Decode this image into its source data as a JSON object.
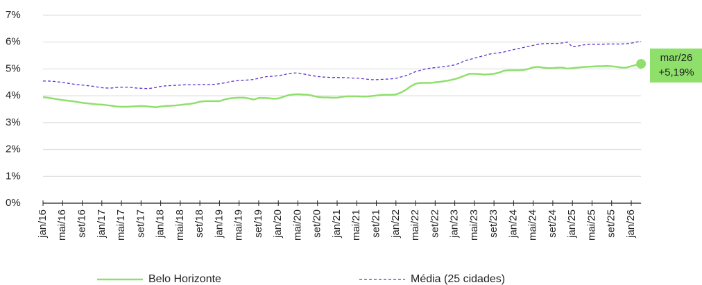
{
  "chart_data": {
    "type": "line",
    "categories": [
      "jan/16",
      null,
      null,
      null,
      "mai/16",
      null,
      null,
      null,
      "set/16",
      null,
      null,
      null,
      "jan/17",
      null,
      null,
      null,
      "mai/17",
      null,
      null,
      null,
      "set/17",
      null,
      null,
      null,
      "jan/18",
      null,
      null,
      null,
      "mai/18",
      null,
      null,
      null,
      "set/18",
      null,
      null,
      null,
      "jan/19",
      null,
      null,
      null,
      "mai/19",
      null,
      null,
      null,
      "set/19",
      null,
      null,
      null,
      "jan/20",
      null,
      null,
      null,
      "mai/20",
      null,
      null,
      null,
      "set/20",
      null,
      null,
      null,
      "jan/21",
      null,
      null,
      null,
      "mai/21",
      null,
      null,
      null,
      "set/21",
      null,
      null,
      null,
      "jan/22",
      null,
      null,
      null,
      "mai/22",
      null,
      null,
      null,
      "set/22",
      null,
      null,
      null,
      "jan/23",
      null,
      null,
      null,
      "mai/23",
      null,
      null,
      null,
      "set/23",
      null,
      null,
      null,
      "jan/24",
      null,
      null,
      null,
      "mai/24",
      null,
      null,
      null,
      "set/24",
      null,
      null,
      null,
      "jan/25",
      null,
      null,
      null,
      "mai/25",
      null,
      null,
      null,
      "set/25",
      null,
      null,
      null,
      "jan/26",
      null,
      null
    ],
    "series": [
      {
        "name": "Belo Horizonte",
        "color": "#8fe06b",
        "style": "solid",
        "values": [
          3.95,
          3.93,
          3.9,
          3.87,
          3.84,
          3.82,
          3.8,
          3.77,
          3.74,
          3.72,
          3.7,
          3.68,
          3.67,
          3.65,
          3.63,
          3.6,
          3.59,
          3.59,
          3.6,
          3.61,
          3.62,
          3.61,
          3.59,
          3.57,
          3.6,
          3.62,
          3.63,
          3.64,
          3.66,
          3.68,
          3.7,
          3.73,
          3.78,
          3.8,
          3.8,
          3.8,
          3.8,
          3.86,
          3.9,
          3.92,
          3.93,
          3.93,
          3.9,
          3.86,
          3.92,
          3.92,
          3.91,
          3.89,
          3.9,
          3.96,
          4.02,
          4.05,
          4.06,
          4.05,
          4.04,
          4.0,
          3.96,
          3.94,
          3.94,
          3.93,
          3.93,
          3.96,
          3.98,
          3.98,
          3.98,
          3.97,
          3.97,
          3.99,
          4.01,
          4.03,
          4.04,
          4.04,
          4.05,
          4.12,
          4.22,
          4.35,
          4.45,
          4.48,
          4.48,
          4.48,
          4.5,
          4.52,
          4.55,
          4.58,
          4.62,
          4.68,
          4.75,
          4.82,
          4.82,
          4.81,
          4.79,
          4.8,
          4.82,
          4.86,
          4.93,
          4.95,
          4.95,
          4.95,
          4.96,
          5.0,
          5.06,
          5.08,
          5.05,
          5.03,
          5.03,
          5.05,
          5.05,
          5.01,
          5.03,
          5.05,
          5.07,
          5.08,
          5.09,
          5.1,
          5.1,
          5.11,
          5.1,
          5.08,
          5.05,
          5.05,
          5.1,
          5.15,
          5.19
        ]
      },
      {
        "name": "Média (25 cidades)",
        "color": "#5b2fd0",
        "style": "dashed",
        "values": [
          4.55,
          4.55,
          4.54,
          4.52,
          4.5,
          4.47,
          4.44,
          4.42,
          4.4,
          4.38,
          4.36,
          4.33,
          4.3,
          4.29,
          4.29,
          4.31,
          4.32,
          4.32,
          4.31,
          4.29,
          4.28,
          4.27,
          4.28,
          4.31,
          4.35,
          4.37,
          4.38,
          4.39,
          4.4,
          4.41,
          4.41,
          4.41,
          4.42,
          4.42,
          4.42,
          4.43,
          4.45,
          4.48,
          4.52,
          4.55,
          4.57,
          4.58,
          4.59,
          4.61,
          4.65,
          4.7,
          4.72,
          4.73,
          4.75,
          4.78,
          4.82,
          4.85,
          4.85,
          4.82,
          4.78,
          4.75,
          4.72,
          4.7,
          4.69,
          4.68,
          4.68,
          4.68,
          4.67,
          4.66,
          4.66,
          4.64,
          4.62,
          4.6,
          4.6,
          4.61,
          4.62,
          4.63,
          4.65,
          4.7,
          4.75,
          4.82,
          4.9,
          4.95,
          5.0,
          5.03,
          5.05,
          5.07,
          5.09,
          5.12,
          5.15,
          5.22,
          5.3,
          5.35,
          5.4,
          5.45,
          5.5,
          5.55,
          5.58,
          5.6,
          5.63,
          5.68,
          5.72,
          5.76,
          5.8,
          5.84,
          5.88,
          5.92,
          5.94,
          5.95,
          5.95,
          5.95,
          5.97,
          6.0,
          5.82,
          5.85,
          5.89,
          5.91,
          5.92,
          5.92,
          5.92,
          5.93,
          5.93,
          5.93,
          5.93,
          5.94,
          5.96,
          6.0,
          6.03
        ]
      }
    ],
    "ylim": [
      0,
      7
    ],
    "yticks": [
      {
        "value": 0,
        "label": "0%"
      },
      {
        "value": 1,
        "label": "1%"
      },
      {
        "value": 2,
        "label": "2%"
      },
      {
        "value": 3,
        "label": "3%"
      },
      {
        "value": 4,
        "label": "4%"
      },
      {
        "value": 5,
        "label": "5%"
      },
      {
        "value": 6,
        "label": "6%"
      },
      {
        "value": 7,
        "label": "7%"
      }
    ],
    "grid": true,
    "legend": "bottom",
    "annotation": {
      "x": "mar/26",
      "text": "+5,19%",
      "color": "#8fe06b"
    }
  }
}
